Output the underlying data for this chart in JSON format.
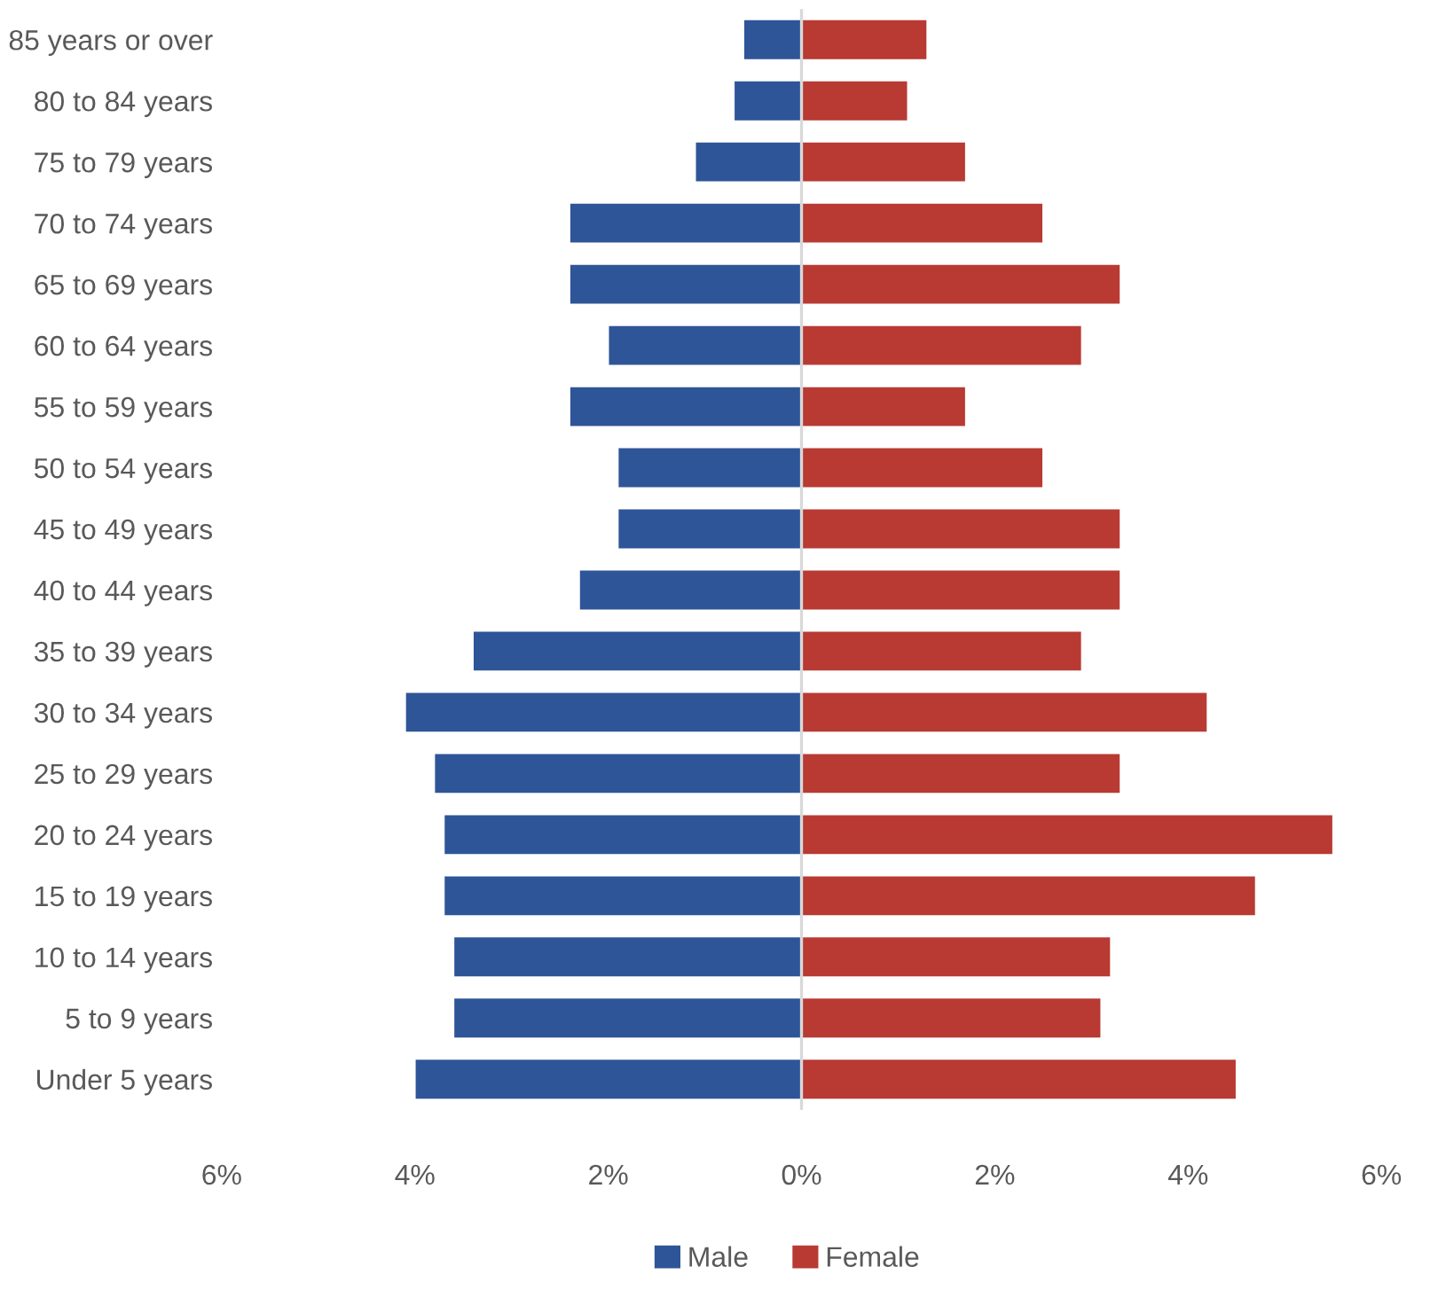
{
  "chart_data": {
    "type": "bar",
    "orientation": "horizontal",
    "stacked": true,
    "categories": [
      "85 years or over",
      "80 to 84 years",
      "75 to 79 years",
      "70 to 74 years",
      "65 to 69 years",
      "60 to 64 years",
      "55 to 59 years",
      "50 to 54 years",
      "45 to 49 years",
      "40 to 44 years",
      "35 to 39 years",
      "30 to 34 years",
      "25 to 29 years",
      "20 to 24 years",
      "15 to 19 years",
      "10 to 14 years",
      "5 to 9 years",
      "Under 5 years"
    ],
    "series": [
      {
        "name": "Male",
        "color": "#2e5597",
        "values": [
          -0.6,
          -0.7,
          -1.1,
          -2.4,
          -2.4,
          -2.0,
          -2.4,
          -1.9,
          -1.9,
          -2.3,
          -3.4,
          -4.1,
          -3.8,
          -3.7,
          -3.7,
          -3.6,
          -3.6,
          -4.0
        ]
      },
      {
        "name": "Female",
        "color": "#b83a33",
        "values": [
          1.3,
          1.1,
          1.7,
          2.5,
          3.3,
          2.9,
          1.7,
          2.5,
          3.3,
          3.3,
          2.9,
          4.2,
          3.3,
          5.5,
          4.7,
          3.2,
          3.1,
          4.5
        ]
      }
    ],
    "xlim": [
      -6,
      6
    ],
    "xticks": [
      {
        "value": -6,
        "label": "6%"
      },
      {
        "value": -4,
        "label": "4%"
      },
      {
        "value": -2,
        "label": "2%"
      },
      {
        "value": 0,
        "label": "0%"
      },
      {
        "value": 2,
        "label": "2%"
      },
      {
        "value": 4,
        "label": "4%"
      },
      {
        "value": 6,
        "label": "6%"
      }
    ],
    "ref_lines": [
      {
        "axis": "x",
        "value": 0,
        "color": "#d9d9d9"
      }
    ],
    "grid": false,
    "legend": "bottom"
  }
}
